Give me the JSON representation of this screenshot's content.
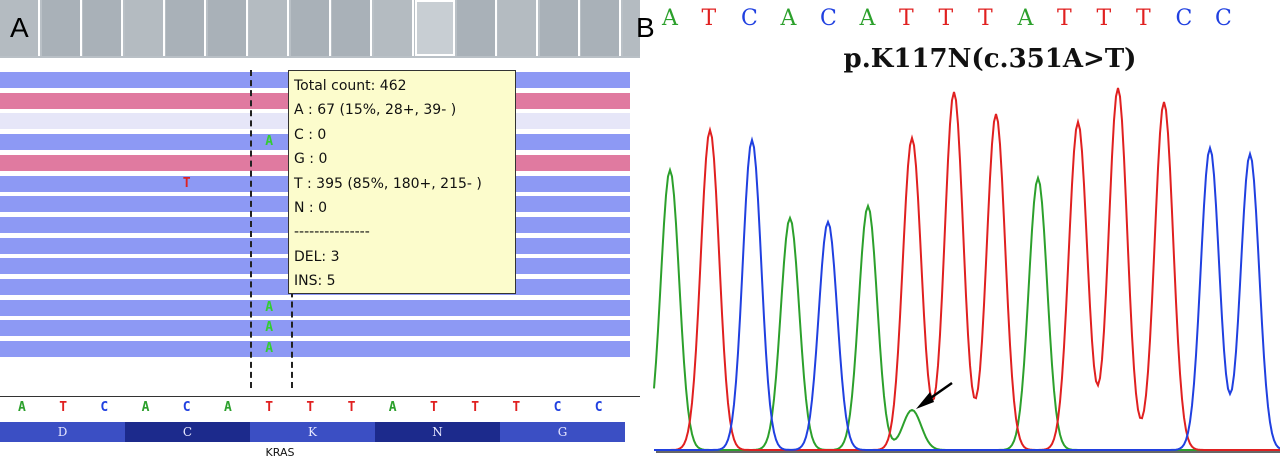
{
  "panel_a": {
    "label": "A",
    "coverage_cells": 16,
    "read_rows": [
      {
        "color": "blue"
      },
      {
        "color": "pink"
      },
      {
        "color": "pale"
      },
      {
        "color": "blue"
      },
      {
        "color": "pink"
      },
      {
        "color": "blue"
      },
      {
        "color": "blue"
      },
      {
        "color": "blue"
      },
      {
        "color": "blue"
      },
      {
        "color": "blue"
      },
      {
        "color": "blue"
      },
      {
        "color": "blue"
      },
      {
        "color": "blue"
      },
      {
        "color": "blue"
      }
    ],
    "mismatches": [
      {
        "row": 3,
        "column": 6,
        "base": "A",
        "color": "#33cc33"
      },
      {
        "row": 5,
        "column": 4,
        "base": "T",
        "color": "#dd2222"
      },
      {
        "row": 11,
        "column": 6,
        "base": "A",
        "color": "#33cc33"
      },
      {
        "row": 12,
        "column": 6,
        "base": "A",
        "color": "#33cc33"
      },
      {
        "row": 13,
        "column": 6,
        "base": "A",
        "color": "#33cc33"
      }
    ],
    "tooltip": [
      "Total count: 462",
      "A : 67 (15%, 28+, 39- )",
      "C : 0",
      "G : 0",
      "T : 395 (85%, 180+, 215- )",
      "N : 0",
      "---------------",
      "DEL: 3",
      "INS: 5"
    ],
    "sequence": [
      "A",
      "T",
      "C",
      "A",
      "C",
      "A",
      "T",
      "T",
      "T",
      "A",
      "T",
      "T",
      "T",
      "C",
      "C"
    ],
    "amino_acids": [
      {
        "label": "D",
        "shade": "#3b4fc4"
      },
      {
        "label": "C",
        "shade": "#1c2a8c"
      },
      {
        "label": "K",
        "shade": "#3b4fc4"
      },
      {
        "label": "N",
        "shade": "#1c2a8c"
      },
      {
        "label": "G",
        "shade": "#3b4fc4"
      }
    ],
    "gene": "KRAS"
  },
  "panel_b": {
    "label": "B",
    "sequence": [
      "A",
      "T",
      "C",
      "A",
      "C",
      "A",
      "T",
      "T",
      "T",
      "A",
      "T",
      "T",
      "T",
      "C",
      "C"
    ],
    "title": "p.K117N(c.351A>T)"
  },
  "base_colors": {
    "A": "#2ca02c",
    "T": "#e02020",
    "C": "#2040e0",
    "G": "#000000"
  }
}
